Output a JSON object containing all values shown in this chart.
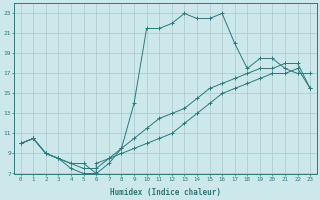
{
  "xlabel": "Humidex (Indice chaleur)",
  "bg_color": "#cce8ea",
  "grid_color": "#aac8cc",
  "line_color": "#2a7a7c",
  "xlim": [
    -0.5,
    23.5
  ],
  "ylim": [
    7,
    24
  ],
  "xticks": [
    0,
    1,
    2,
    3,
    4,
    5,
    6,
    7,
    8,
    9,
    10,
    11,
    12,
    13,
    14,
    15,
    16,
    17,
    18,
    19,
    20,
    21,
    22,
    23
  ],
  "yticks": [
    7,
    9,
    11,
    13,
    15,
    17,
    19,
    21,
    23
  ],
  "line1_x": [
    0,
    1,
    2,
    3,
    4,
    5,
    6,
    6,
    7,
    8,
    9,
    10,
    11,
    12,
    13,
    14,
    15,
    16,
    17,
    18,
    19,
    20,
    21,
    22,
    23
  ],
  "line1_y": [
    10,
    10.5,
    9,
    8.5,
    8,
    8,
    7,
    8,
    8.5,
    9,
    9.5,
    10,
    10.5,
    11,
    12,
    13,
    14,
    15,
    15.5,
    16,
    16.5,
    17,
    17,
    17.5,
    15.5
  ],
  "line2_x": [
    0,
    1,
    2,
    3,
    4,
    5,
    6,
    7,
    8,
    9,
    10,
    11,
    12,
    13,
    14,
    15,
    16,
    17,
    18,
    19,
    20,
    21,
    22,
    23
  ],
  "line2_y": [
    10,
    10.5,
    9,
    8.5,
    8,
    7.5,
    7.5,
    8.5,
    9.5,
    10.5,
    11.5,
    12.5,
    13,
    13.5,
    14.5,
    15.5,
    16,
    16.5,
    17,
    17.5,
    17.5,
    18,
    18,
    15.5
  ],
  "line3_x": [
    0,
    1,
    2,
    3,
    4,
    5,
    6,
    7,
    8,
    9,
    10,
    11,
    12,
    13,
    14,
    15,
    16,
    17,
    18,
    19,
    20,
    21,
    22,
    23
  ],
  "line3_y": [
    10,
    10.5,
    9,
    8.5,
    7.5,
    7,
    7,
    8,
    9.5,
    14,
    21.5,
    21.5,
    22,
    23,
    22.5,
    22.5,
    23,
    20,
    17.5,
    18.5,
    18.5,
    17.5,
    17,
    17
  ]
}
